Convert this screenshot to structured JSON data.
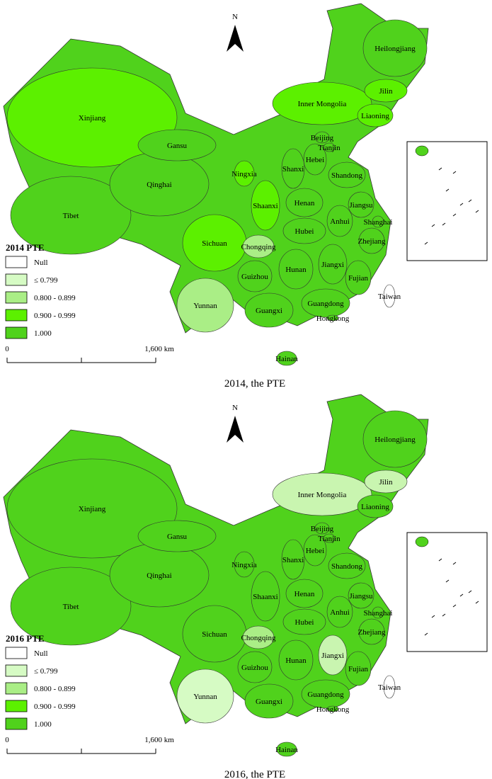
{
  "maps": [
    {
      "north": "N",
      "caption": "2014, the PTE",
      "legend": {
        "title": "2014 PTE",
        "items": [
          {
            "label": "Null",
            "color": "#ffffff"
          },
          {
            "label": "≤ 0.799",
            "color": "#d6fbc4"
          },
          {
            "label": "0.800 - 0.899",
            "color": "#aaee86"
          },
          {
            "label": "0.900 - 0.999",
            "color": "#5cf000"
          },
          {
            "label": "1.000",
            "color": "#50d21c"
          }
        ]
      },
      "scale": {
        "start": "0",
        "end": "1,600 km"
      },
      "provinces": [
        {
          "name": "Xinjiang",
          "color": "#5cf000"
        },
        {
          "name": "Tibet",
          "color": "#50d21c"
        },
        {
          "name": "Qinghai",
          "color": "#50d21c"
        },
        {
          "name": "Gansu",
          "color": "#50d21c"
        },
        {
          "name": "Inner Mongolia",
          "color": "#5cf000"
        },
        {
          "name": "Heilongjiang",
          "color": "#50d21c"
        },
        {
          "name": "Jilin",
          "color": "#5cf000"
        },
        {
          "name": "Liaoning",
          "color": "#5cf000"
        },
        {
          "name": "Ningxia",
          "color": "#5cf000"
        },
        {
          "name": "Beijing",
          "color": "#50d21c"
        },
        {
          "name": "Tianjin",
          "color": "#50d21c"
        },
        {
          "name": "Hebei",
          "color": "#50d21c"
        },
        {
          "name": "Shanxi",
          "color": "#50d21c"
        },
        {
          "name": "Shandong",
          "color": "#50d21c"
        },
        {
          "name": "Shaanxi",
          "color": "#5cf000"
        },
        {
          "name": "Henan",
          "color": "#50d21c"
        },
        {
          "name": "Jiangsu",
          "color": "#50d21c"
        },
        {
          "name": "Anhui",
          "color": "#50d21c"
        },
        {
          "name": "Shanghai",
          "color": "#50d21c"
        },
        {
          "name": "Sichuan",
          "color": "#5cf000"
        },
        {
          "name": "Chongqing",
          "color": "#aaee86"
        },
        {
          "name": "Hubei",
          "color": "#50d21c"
        },
        {
          "name": "Zhejiang",
          "color": "#50d21c"
        },
        {
          "name": "Jiangxi",
          "color": "#50d21c"
        },
        {
          "name": "Hunan",
          "color": "#50d21c"
        },
        {
          "name": "Guizhou",
          "color": "#50d21c"
        },
        {
          "name": "Fujian",
          "color": "#50d21c"
        },
        {
          "name": "Yunnan",
          "color": "#aaee86"
        },
        {
          "name": "Guangxi",
          "color": "#50d21c"
        },
        {
          "name": "Guangdong",
          "color": "#50d21c"
        },
        {
          "name": "Hongkong",
          "color": "#50d21c"
        },
        {
          "name": "Hainan",
          "color": "#50d21c"
        },
        {
          "name": "Taiwan",
          "color": "#ffffff"
        }
      ]
    },
    {
      "north": "N",
      "caption": "2016, the PTE",
      "legend": {
        "title": "2016 PTE",
        "items": [
          {
            "label": "Null",
            "color": "#ffffff"
          },
          {
            "label": "≤ 0.799",
            "color": "#d6fbc4"
          },
          {
            "label": "0.800 - 0.899",
            "color": "#aaee86"
          },
          {
            "label": "0.900 - 0.999",
            "color": "#5cf000"
          },
          {
            "label": "1.000",
            "color": "#50d21c"
          }
        ]
      },
      "scale": {
        "start": "0",
        "end": "1,600 km"
      },
      "provinces": [
        {
          "name": "Xinjiang",
          "color": "#50d21c"
        },
        {
          "name": "Tibet",
          "color": "#50d21c"
        },
        {
          "name": "Qinghai",
          "color": "#50d21c"
        },
        {
          "name": "Gansu",
          "color": "#50d21c"
        },
        {
          "name": "Inner Mongolia",
          "color": "#c9f5b0"
        },
        {
          "name": "Heilongjiang",
          "color": "#50d21c"
        },
        {
          "name": "Jilin",
          "color": "#c9f5b0"
        },
        {
          "name": "Liaoning",
          "color": "#50d21c"
        },
        {
          "name": "Ningxia",
          "color": "#50d21c"
        },
        {
          "name": "Beijing",
          "color": "#50d21c"
        },
        {
          "name": "Tianjin",
          "color": "#50d21c"
        },
        {
          "name": "Hebei",
          "color": "#50d21c"
        },
        {
          "name": "Shanxi",
          "color": "#50d21c"
        },
        {
          "name": "Shandong",
          "color": "#50d21c"
        },
        {
          "name": "Shaanxi",
          "color": "#50d21c"
        },
        {
          "name": "Henan",
          "color": "#50d21c"
        },
        {
          "name": "Jiangsu",
          "color": "#50d21c"
        },
        {
          "name": "Anhui",
          "color": "#50d21c"
        },
        {
          "name": "Shanghai",
          "color": "#50d21c"
        },
        {
          "name": "Sichuan",
          "color": "#50d21c"
        },
        {
          "name": "Chongqing",
          "color": "#aaee86"
        },
        {
          "name": "Hubei",
          "color": "#50d21c"
        },
        {
          "name": "Zhejiang",
          "color": "#50d21c"
        },
        {
          "name": "Jiangxi",
          "color": "#c9f5b0"
        },
        {
          "name": "Hunan",
          "color": "#50d21c"
        },
        {
          "name": "Guizhou",
          "color": "#50d21c"
        },
        {
          "name": "Fujian",
          "color": "#50d21c"
        },
        {
          "name": "Yunnan",
          "color": "#d6fbc4"
        },
        {
          "name": "Guangxi",
          "color": "#50d21c"
        },
        {
          "name": "Guangdong",
          "color": "#50d21c"
        },
        {
          "name": "Hongkong",
          "color": "#50d21c"
        },
        {
          "name": "Hainan",
          "color": "#50d21c"
        },
        {
          "name": "Taiwan",
          "color": "#ffffff"
        }
      ]
    }
  ]
}
